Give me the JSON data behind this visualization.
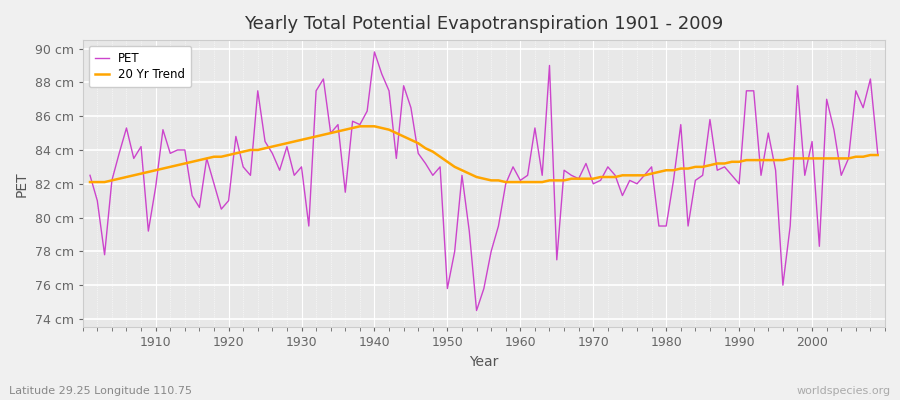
{
  "title": "Yearly Total Potential Evapotranspiration 1901 - 2009",
  "ylabel": "PET",
  "xlabel": "Year",
  "subtitle_left": "Latitude 29.25 Longitude 110.75",
  "subtitle_right": "worldspecies.org",
  "line_color": "#CC44CC",
  "trend_color": "#FFA500",
  "background_color": "#F0F0F0",
  "plot_bg_color": "#E8E8E8",
  "grid_color": "#FFFFFF",
  "ylim": [
    73.5,
    90.5
  ],
  "yticks": [
    74,
    76,
    78,
    80,
    82,
    84,
    86,
    88,
    90
  ],
  "years": [
    1901,
    1902,
    1903,
    1904,
    1905,
    1906,
    1907,
    1908,
    1909,
    1910,
    1911,
    1912,
    1913,
    1914,
    1915,
    1916,
    1917,
    1918,
    1919,
    1920,
    1921,
    1922,
    1923,
    1924,
    1925,
    1926,
    1927,
    1928,
    1929,
    1930,
    1931,
    1932,
    1933,
    1934,
    1935,
    1936,
    1937,
    1938,
    1939,
    1940,
    1941,
    1942,
    1943,
    1944,
    1945,
    1946,
    1947,
    1948,
    1949,
    1950,
    1951,
    1952,
    1953,
    1954,
    1955,
    1956,
    1957,
    1958,
    1959,
    1960,
    1961,
    1962,
    1963,
    1964,
    1965,
    1966,
    1967,
    1968,
    1969,
    1970,
    1971,
    1972,
    1973,
    1974,
    1975,
    1976,
    1977,
    1978,
    1979,
    1980,
    1981,
    1982,
    1983,
    1984,
    1985,
    1986,
    1987,
    1988,
    1989,
    1990,
    1991,
    1992,
    1993,
    1994,
    1995,
    1996,
    1997,
    1998,
    1999,
    2000,
    2001,
    2002,
    2003,
    2004,
    2005,
    2006,
    2007,
    2008,
    2009
  ],
  "pet": [
    82.5,
    81.0,
    77.8,
    82.2,
    83.8,
    85.3,
    83.5,
    84.2,
    79.2,
    81.8,
    85.2,
    83.8,
    84.0,
    84.0,
    81.3,
    80.6,
    83.5,
    82.0,
    80.5,
    81.0,
    84.8,
    83.0,
    82.5,
    87.5,
    84.5,
    83.8,
    82.8,
    84.2,
    82.5,
    83.0,
    79.5,
    87.5,
    88.2,
    85.0,
    85.5,
    81.5,
    85.7,
    85.5,
    86.3,
    89.8,
    88.5,
    87.5,
    83.5,
    87.8,
    86.5,
    83.8,
    83.2,
    82.5,
    83.0,
    75.8,
    78.0,
    82.5,
    79.2,
    74.5,
    75.8,
    78.0,
    79.5,
    82.0,
    83.0,
    82.2,
    82.5,
    85.3,
    82.5,
    89.0,
    77.5,
    82.8,
    82.5,
    82.3,
    83.2,
    82.0,
    82.2,
    83.0,
    82.5,
    81.3,
    82.2,
    82.0,
    82.5,
    83.0,
    79.5,
    79.5,
    82.2,
    85.5,
    79.5,
    82.2,
    82.5,
    85.8,
    82.8,
    83.0,
    82.5,
    82.0,
    87.5,
    87.5,
    82.5,
    85.0,
    82.8,
    76.0,
    79.5,
    87.8,
    82.5,
    84.5,
    78.3,
    87.0,
    85.2,
    82.5,
    83.5,
    87.5,
    86.5,
    88.2,
    83.8
  ],
  "trend": [
    82.1,
    82.1,
    82.1,
    82.2,
    82.3,
    82.4,
    82.5,
    82.6,
    82.7,
    82.8,
    82.9,
    83.0,
    83.1,
    83.2,
    83.3,
    83.4,
    83.5,
    83.6,
    83.6,
    83.7,
    83.8,
    83.9,
    84.0,
    84.0,
    84.1,
    84.2,
    84.3,
    84.4,
    84.5,
    84.6,
    84.7,
    84.8,
    84.9,
    85.0,
    85.1,
    85.2,
    85.3,
    85.4,
    85.4,
    85.4,
    85.3,
    85.2,
    85.0,
    84.8,
    84.6,
    84.4,
    84.1,
    83.9,
    83.6,
    83.3,
    83.0,
    82.8,
    82.6,
    82.4,
    82.3,
    82.2,
    82.2,
    82.1,
    82.1,
    82.1,
    82.1,
    82.1,
    82.1,
    82.2,
    82.2,
    82.2,
    82.3,
    82.3,
    82.3,
    82.3,
    82.4,
    82.4,
    82.4,
    82.5,
    82.5,
    82.5,
    82.5,
    82.6,
    82.7,
    82.8,
    82.8,
    82.9,
    82.9,
    83.0,
    83.0,
    83.1,
    83.2,
    83.2,
    83.3,
    83.3,
    83.4,
    83.4,
    83.4,
    83.4,
    83.4,
    83.4,
    83.5,
    83.5,
    83.5,
    83.5,
    83.5,
    83.5,
    83.5,
    83.5,
    83.5,
    83.6,
    83.6,
    83.7,
    83.7
  ]
}
